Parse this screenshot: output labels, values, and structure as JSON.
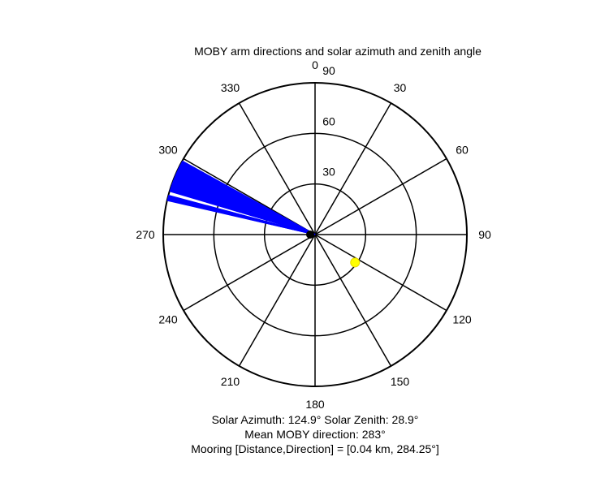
{
  "chart_data": {
    "type": "polar",
    "title": "MOBY arm directions and solar azimuth and zenith angle",
    "angle_ticks": [
      "0",
      "30",
      "60",
      "90",
      "120",
      "150",
      "180",
      "210",
      "240",
      "270",
      "300",
      "330"
    ],
    "radial_ticks": [
      "30",
      "60",
      "90"
    ],
    "radial_max": 90,
    "angular_convention": "compass, 0 at top, clockwise",
    "series": [
      {
        "type": "arm_directions",
        "color": "#0000ff",
        "azimuth_range_deg": [
          283,
          299
        ],
        "radius": 90
      },
      {
        "type": "sun_position",
        "color": "#ffff00",
        "azimuth": 124.9,
        "zenith": 28.9
      }
    ],
    "grid": true
  },
  "captions": {
    "solar": "Solar Azimuth: 124.9°   Solar Zenith: 28.9°",
    "mean": "Mean MOBY direction: 283°",
    "mooring": "Mooring [Distance,Direction] = [0.04 km, 284.25°]"
  }
}
